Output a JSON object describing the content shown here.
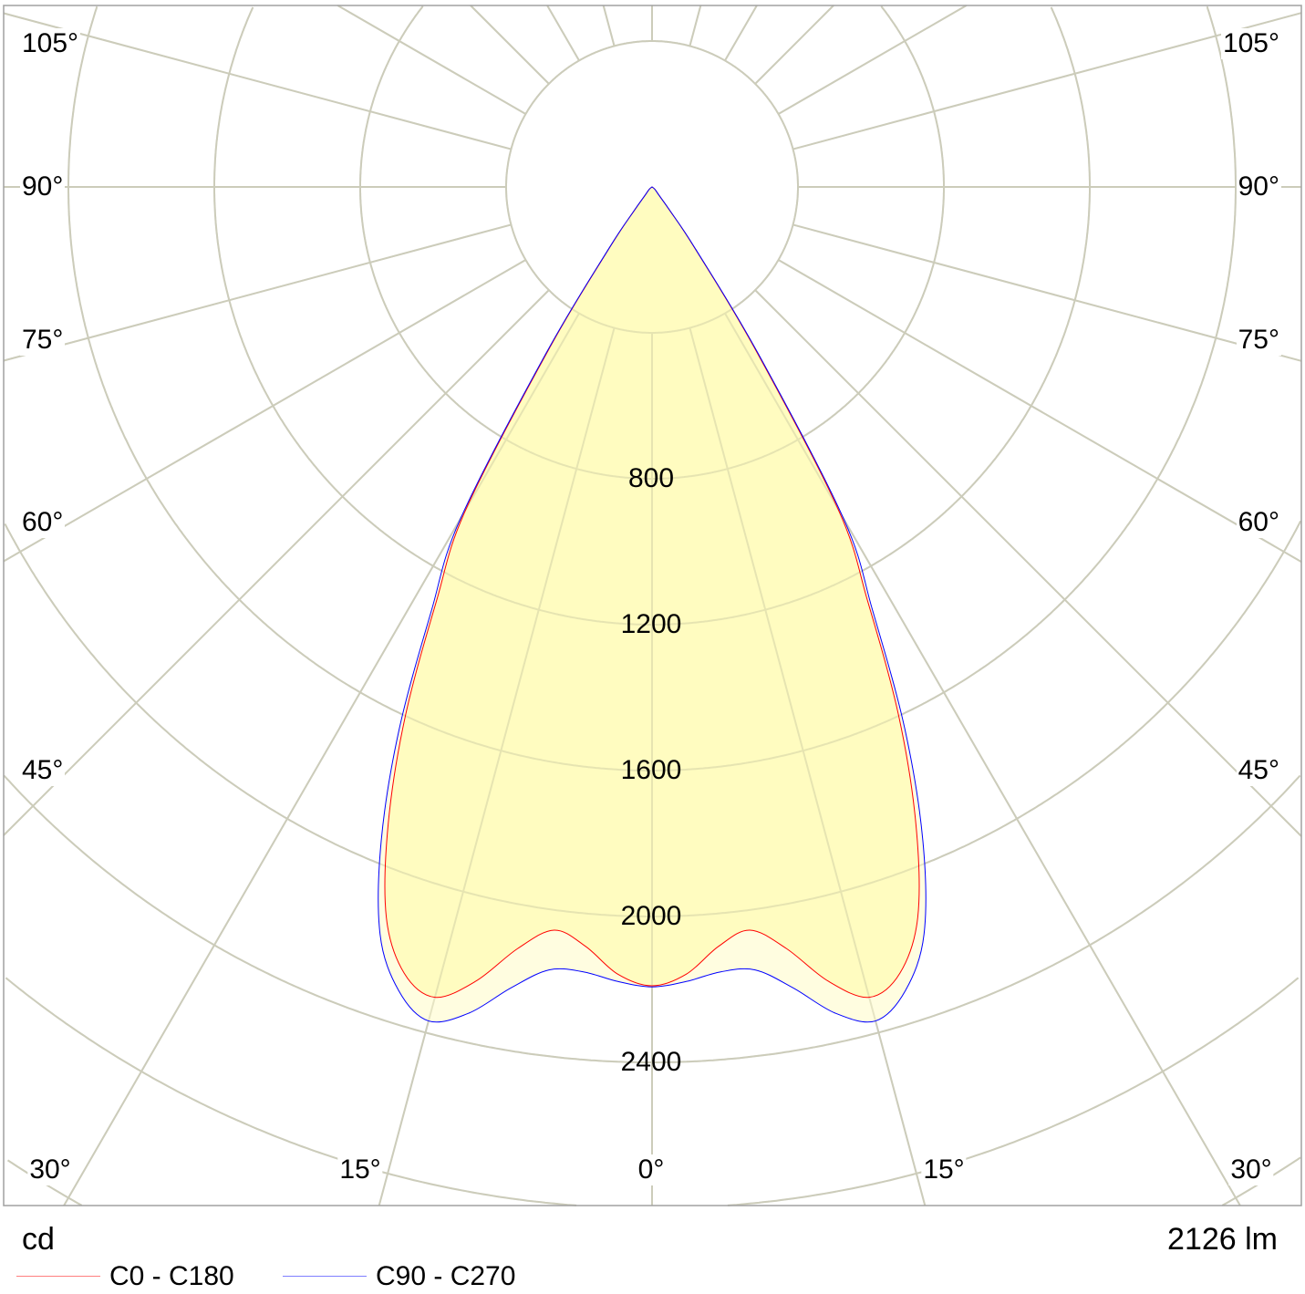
{
  "chart_data": {
    "type": "polar-line",
    "unit_label": "cd",
    "flux_label": "2126 lm",
    "radial_ticks": [
      800,
      1200,
      1600,
      2000,
      2400
    ],
    "radial_rings": [
      400,
      800,
      1200,
      1600,
      2000,
      2400,
      2800,
      3200,
      3600
    ],
    "angle_labels_left": [
      "105°",
      "90°",
      "75°",
      "60°",
      "45°",
      "30°",
      "15°"
    ],
    "angle_labels_right": [
      "105°",
      "90°",
      "75°",
      "60°",
      "45°",
      "30°",
      "15°"
    ],
    "angle_label_center": "0°",
    "grid": true,
    "legend_position": "bottom-left",
    "series": [
      {
        "name": "C0 - C180",
        "color": "#ff0000",
        "angles": [
          0,
          2.5,
          5,
          7.5,
          10,
          12.5,
          15,
          17.5,
          20,
          22.5,
          25,
          27.5,
          30,
          32.5,
          35,
          37,
          40,
          50,
          90
        ],
        "values": [
          2190,
          2160,
          2090,
          2055,
          2120,
          2230,
          2300,
          2260,
          2130,
          1890,
          1600,
          1280,
          1020,
          520,
          200,
          80,
          30,
          10,
          0
        ]
      },
      {
        "name": "C90 - C270",
        "color": "#0000ff",
        "angles": [
          0,
          2.5,
          5,
          7.5,
          10,
          12.5,
          15,
          17.5,
          20,
          22.5,
          25,
          27.5,
          30,
          32.5,
          35,
          37,
          40,
          50,
          90
        ],
        "values": [
          2193,
          2180,
          2160,
          2165,
          2230,
          2320,
          2367,
          2310,
          2180,
          1940,
          1640,
          1310,
          1050,
          540,
          210,
          85,
          30,
          10,
          0
        ]
      }
    ]
  }
}
